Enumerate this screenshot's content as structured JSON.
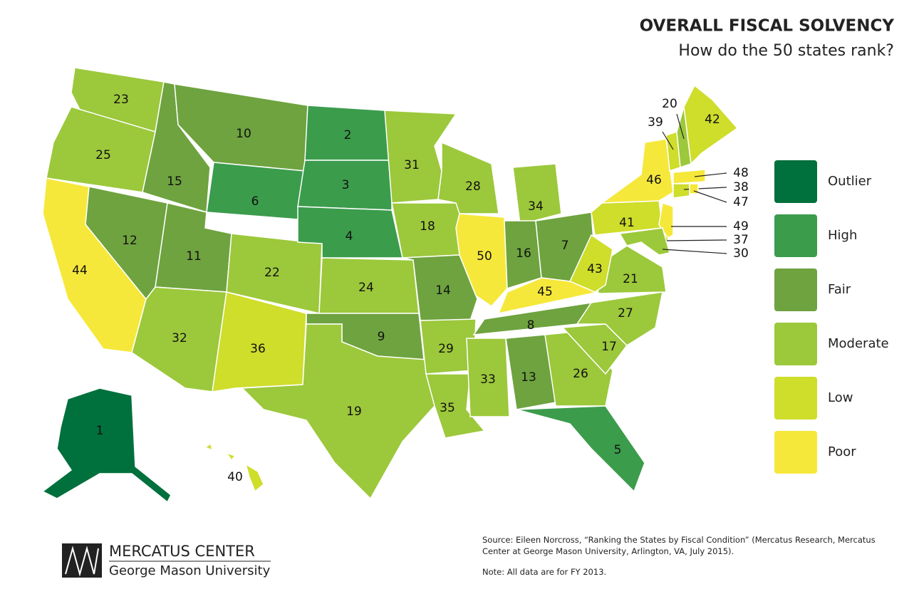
{
  "title": "OVERALL FISCAL SOLVENCY",
  "subtitle": "How do the 50 states rank?",
  "legend": [
    {
      "label": "Outlier",
      "color": "#00703c"
    },
    {
      "label": "High",
      "color": "#3b9c4c"
    },
    {
      "label": "Fair",
      "color": "#6ea33f"
    },
    {
      "label": "Moderate",
      "color": "#9cc83b"
    },
    {
      "label": "Low",
      "color": "#cfdd2b"
    },
    {
      "label": "Poor",
      "color": "#f6e83b"
    }
  ],
  "states": [
    {
      "rank": 23,
      "category": "Moderate"
    },
    {
      "rank": 25,
      "category": "Moderate"
    },
    {
      "rank": 44,
      "category": "Poor"
    },
    {
      "rank": 12,
      "category": "Fair"
    },
    {
      "rank": 15,
      "category": "Fair"
    },
    {
      "rank": 10,
      "category": "Fair"
    },
    {
      "rank": 6,
      "category": "High"
    },
    {
      "rank": 11,
      "category": "Fair"
    },
    {
      "rank": 22,
      "category": "Moderate"
    },
    {
      "rank": 32,
      "category": "Moderate"
    },
    {
      "rank": 36,
      "category": "Low"
    },
    {
      "rank": 2,
      "category": "High"
    },
    {
      "rank": 3,
      "category": "High"
    },
    {
      "rank": 4,
      "category": "High"
    },
    {
      "rank": 24,
      "category": "Moderate"
    },
    {
      "rank": 9,
      "category": "Fair"
    },
    {
      "rank": 19,
      "category": "Moderate"
    },
    {
      "rank": 31,
      "category": "Moderate"
    },
    {
      "rank": 18,
      "category": "Moderate"
    },
    {
      "rank": 14,
      "category": "Fair"
    },
    {
      "rank": 29,
      "category": "Moderate"
    },
    {
      "rank": 35,
      "category": "Moderate"
    },
    {
      "rank": 28,
      "category": "Moderate"
    },
    {
      "rank": 50,
      "category": "Poor"
    },
    {
      "rank": 34,
      "category": "Moderate"
    },
    {
      "rank": 16,
      "category": "Fair"
    },
    {
      "rank": 7,
      "category": "Fair"
    },
    {
      "rank": 45,
      "category": "Poor"
    },
    {
      "rank": 8,
      "category": "Fair"
    },
    {
      "rank": 33,
      "category": "Moderate"
    },
    {
      "rank": 13,
      "category": "Fair"
    },
    {
      "rank": 26,
      "category": "Moderate"
    },
    {
      "rank": 5,
      "category": "High"
    },
    {
      "rank": 17,
      "category": "Moderate"
    },
    {
      "rank": 27,
      "category": "Moderate"
    },
    {
      "rank": 21,
      "category": "Moderate"
    },
    {
      "rank": 43,
      "category": "Low"
    },
    {
      "rank": 41,
      "category": "Low"
    },
    {
      "rank": 46,
      "category": "Poor"
    },
    {
      "rank": 39,
      "category": "Low"
    },
    {
      "rank": 20,
      "category": "Moderate"
    },
    {
      "rank": 42,
      "category": "Low"
    },
    {
      "rank": 48,
      "category": "Poor"
    },
    {
      "rank": 38,
      "category": "Low"
    },
    {
      "rank": 47,
      "category": "Poor"
    },
    {
      "rank": 49,
      "category": "Poor"
    },
    {
      "rank": 37,
      "category": "Low"
    },
    {
      "rank": 30,
      "category": "Moderate"
    },
    {
      "rank": 1,
      "category": "Outlier"
    },
    {
      "rank": 40,
      "category": "Low"
    }
  ],
  "logo": {
    "name": "MERCATUS CENTER",
    "university": "George Mason University"
  },
  "source": "Source: Eileen Norcross, “Ranking the States by Fiscal Condition” (Mercatus Research, Mercatus Center at George Mason University, Arlington, VA, July 2015).",
  "note": "Note: All data are for FY 2013."
}
